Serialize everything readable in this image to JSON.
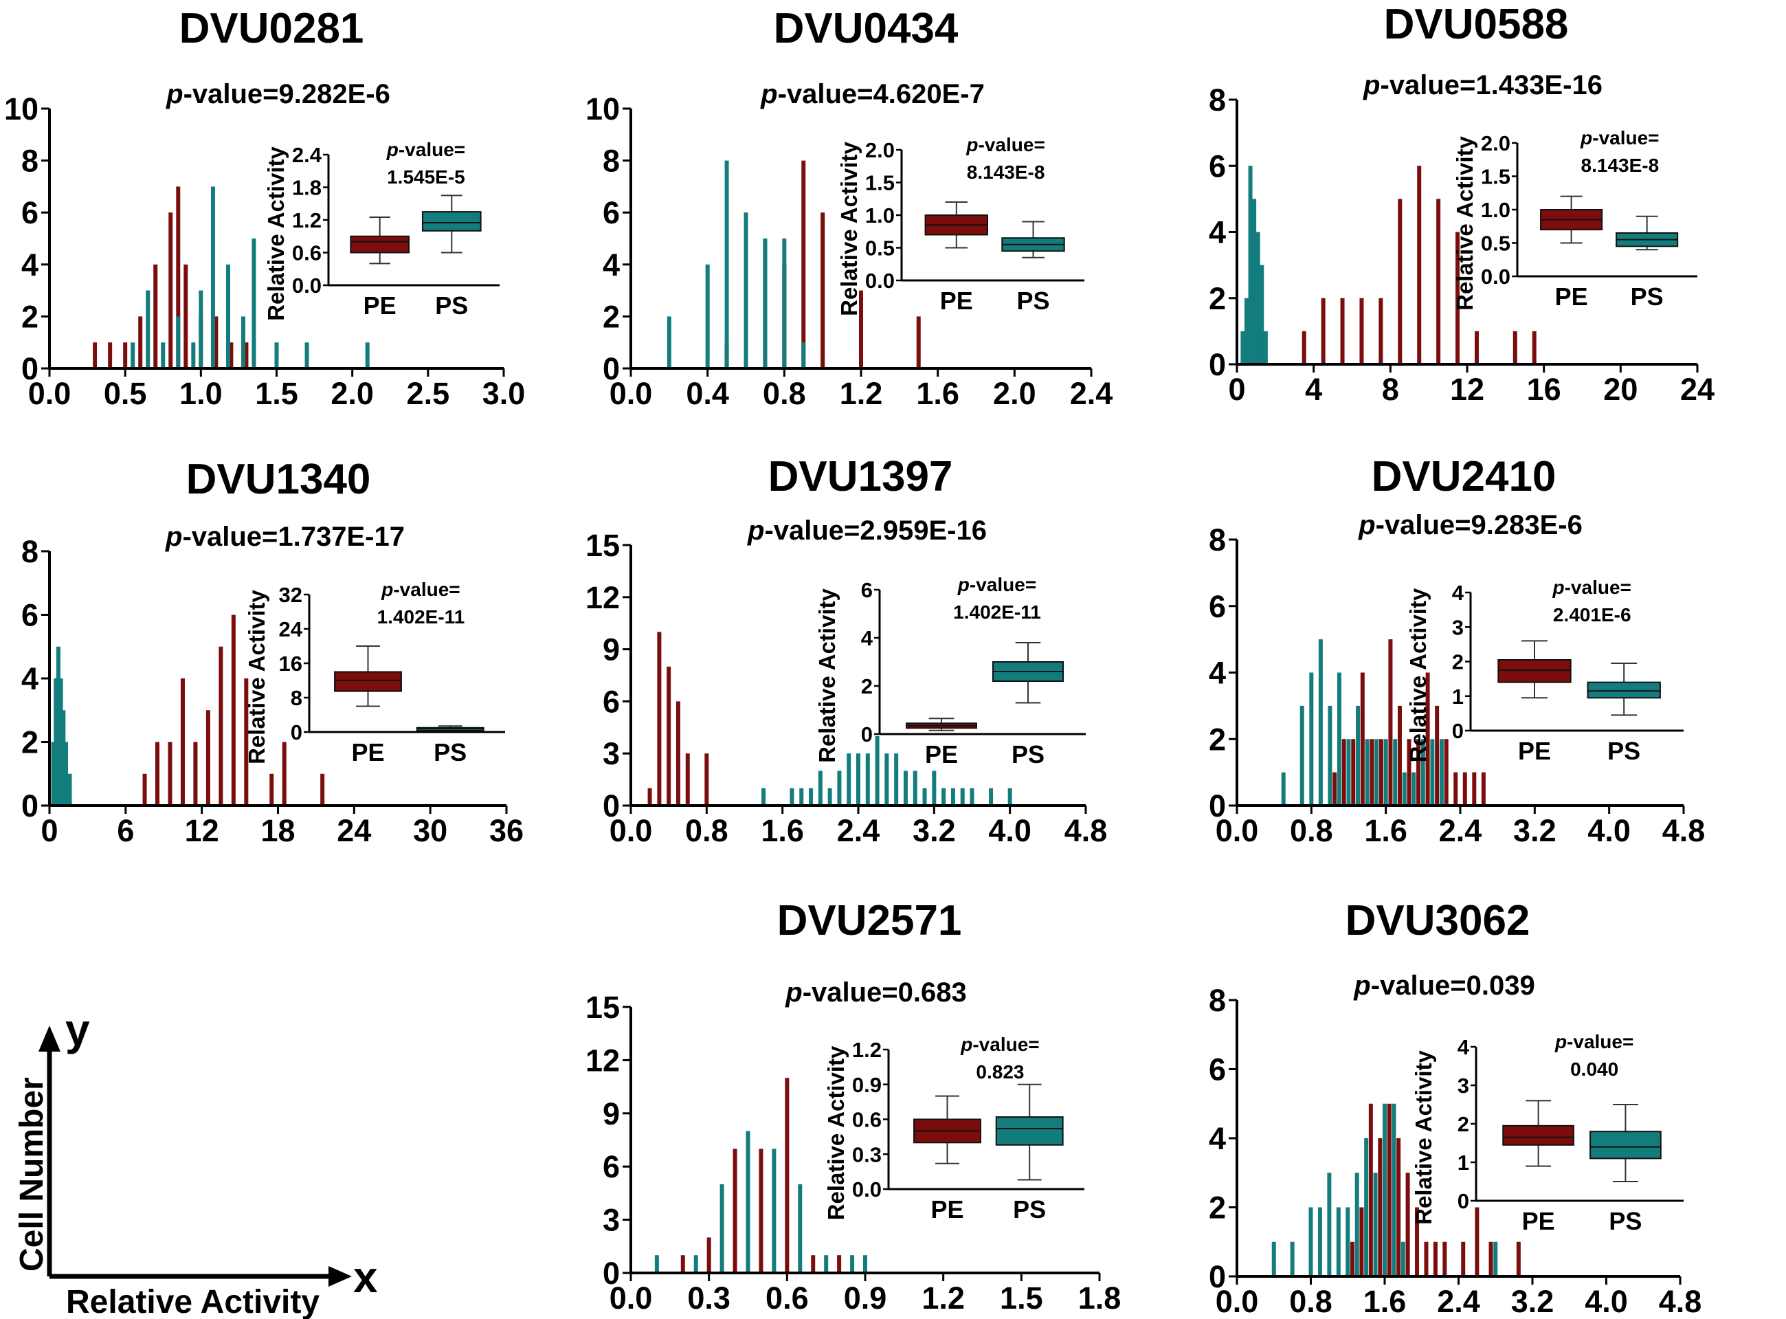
{
  "colors": {
    "PE": "#7b0d0d",
    "PS": "#137d7d",
    "axis": "#000000"
  },
  "legend": {
    "x_label": "Relative Activity",
    "y_label": "Cell Number",
    "x_arrow": "x",
    "y_arrow": "y"
  },
  "chart_data": [
    {
      "type": "bar",
      "title": "DVU0281",
      "p_prefix": "p",
      "p_value": "-value=9.282E-6",
      "xlim": [
        0,
        3.0
      ],
      "ylim": [
        0,
        10
      ],
      "xticks": [
        "0.0",
        "0.5",
        "1.0",
        "1.5",
        "2.0",
        "2.5",
        "3.0"
      ],
      "yticks": [
        "0",
        "2",
        "4",
        "6",
        "8",
        "10"
      ],
      "series": [
        {
          "name": "PE",
          "x": [
            0.3,
            0.4,
            0.5,
            0.6,
            0.7,
            0.8,
            0.85,
            0.9,
            1.0,
            1.1,
            1.2,
            1.3
          ],
          "values": [
            1,
            1,
            1,
            2,
            4,
            6,
            7,
            4,
            2,
            2,
            1,
            1
          ]
        },
        {
          "name": "PS",
          "x": [
            0.55,
            0.65,
            0.75,
            0.85,
            0.95,
            1.0,
            1.08,
            1.18,
            1.28,
            1.35,
            1.5,
            1.7,
            2.1
          ],
          "values": [
            1,
            3,
            1,
            2,
            1,
            3,
            7,
            4,
            2,
            5,
            1,
            1,
            1
          ]
        }
      ],
      "inset": {
        "ylabel": "Relative Activity",
        "ylim": [
          0,
          2.4
        ],
        "yticks": [
          "0.0",
          "0.6",
          "1.2",
          "1.8",
          "2.4"
        ],
        "categories": [
          "PE",
          "PS"
        ],
        "p_prefix": "p",
        "p_label": "-value=",
        "p_value": "1.545E-5",
        "boxes": [
          {
            "name": "PE",
            "min": 0.4,
            "q1": 0.6,
            "median": 0.8,
            "q3": 0.9,
            "max": 1.25
          },
          {
            "name": "PS",
            "min": 0.6,
            "q1": 1.0,
            "median": 1.15,
            "q3": 1.35,
            "max": 1.65
          }
        ]
      }
    },
    {
      "type": "bar",
      "title": "DVU0434",
      "p_prefix": "p",
      "p_value": "-value=4.620E-7",
      "xlim": [
        0,
        2.4
      ],
      "ylim": [
        0,
        10
      ],
      "xticks": [
        "0.0",
        "0.4",
        "0.8",
        "1.2",
        "1.6",
        "2.0",
        "2.4"
      ],
      "yticks": [
        "0",
        "2",
        "4",
        "6",
        "8",
        "10"
      ],
      "series": [
        {
          "name": "PE",
          "x": [
            0.5,
            0.6,
            0.7,
            0.8,
            0.9,
            1.0,
            1.2,
            1.5
          ],
          "values": [
            1,
            2,
            5,
            4,
            8,
            6,
            3,
            2
          ]
        },
        {
          "name": "PS",
          "x": [
            0.2,
            0.4,
            0.5,
            0.6,
            0.7,
            0.8,
            0.9
          ],
          "values": [
            2,
            4,
            8,
            6,
            5,
            5,
            1
          ]
        }
      ],
      "inset": {
        "ylabel": "Relative Activity",
        "ylim": [
          0,
          2.0
        ],
        "yticks": [
          "0.0",
          "0.5",
          "1.0",
          "1.5",
          "2.0"
        ],
        "categories": [
          "PE",
          "PS"
        ],
        "p_prefix": "p",
        "p_label": "-value=",
        "p_value": "8.143E-8",
        "boxes": [
          {
            "name": "PE",
            "min": 0.5,
            "q1": 0.7,
            "median": 0.85,
            "q3": 1.0,
            "max": 1.2
          },
          {
            "name": "PS",
            "min": 0.35,
            "q1": 0.45,
            "median": 0.55,
            "q3": 0.65,
            "max": 0.9
          }
        ]
      }
    },
    {
      "type": "bar",
      "title": "DVU0588",
      "p_prefix": "p",
      "p_value": "-value=1.433E-16",
      "xlim": [
        0,
        24
      ],
      "ylim": [
        0,
        8
      ],
      "xticks": [
        "0",
        "4",
        "8",
        "12",
        "16",
        "20",
        "24"
      ],
      "yticks": [
        "0",
        "2",
        "4",
        "6",
        "8"
      ],
      "series": [
        {
          "name": "PE",
          "x": [
            3.5,
            4.5,
            5.5,
            6.5,
            7.5,
            8.5,
            9.5,
            10.5,
            11.5,
            12.5,
            14.5,
            15.5
          ],
          "values": [
            1,
            2,
            2,
            2,
            2,
            5,
            6,
            5,
            4,
            1,
            1,
            1
          ]
        },
        {
          "name": "PS",
          "x": [
            0.3,
            0.5,
            0.7,
            0.9,
            1.1,
            1.3,
            1.5
          ],
          "values": [
            1,
            2,
            6,
            5,
            4,
            3,
            1
          ]
        }
      ],
      "inset": {
        "ylabel": "Relative Activity",
        "ylim": [
          0,
          2.0
        ],
        "yticks": [
          "0.0",
          "0.5",
          "1.0",
          "1.5",
          "2.0"
        ],
        "categories": [
          "PE",
          "PS"
        ],
        "p_prefix": "p",
        "p_label": "-value=",
        "p_value": "8.143E-8",
        "boxes": [
          {
            "name": "PE",
            "min": 0.5,
            "q1": 0.7,
            "median": 0.85,
            "q3": 1.0,
            "max": 1.2
          },
          {
            "name": "PS",
            "min": 0.4,
            "q1": 0.45,
            "median": 0.55,
            "q3": 0.65,
            "max": 0.9
          }
        ]
      }
    },
    {
      "type": "bar",
      "title": "DVU1340",
      "p_prefix": "p",
      "p_value": "-value=1.737E-17",
      "xlim": [
        0,
        36
      ],
      "ylim": [
        0,
        8
      ],
      "xticks": [
        "0",
        "6",
        "12",
        "18",
        "24",
        "30",
        "36"
      ],
      "yticks": [
        "0",
        "2",
        "4",
        "6",
        "8"
      ],
      "series": [
        {
          "name": "PE",
          "x": [
            7.5,
            8.5,
            9.5,
            10.5,
            11.5,
            12.5,
            13.5,
            14.5,
            15.5,
            17.5,
            18.5,
            21.5
          ],
          "values": [
            1,
            2,
            2,
            4,
            2,
            3,
            5,
            6,
            4,
            1,
            2,
            1
          ]
        },
        {
          "name": "PS",
          "x": [
            0.3,
            0.5,
            0.7,
            0.9,
            1.1,
            1.3,
            1.6
          ],
          "values": [
            2,
            4,
            5,
            4,
            3,
            2,
            1
          ]
        }
      ],
      "inset": {
        "ylabel": "Relative Activity",
        "ylim": [
          0,
          32
        ],
        "yticks": [
          "0",
          "8",
          "16",
          "24",
          "32"
        ],
        "categories": [
          "PE",
          "PS"
        ],
        "p_prefix": "p",
        "p_label": "-value=",
        "p_value": "1.402E-11",
        "boxes": [
          {
            "name": "PE",
            "min": 6,
            "q1": 9.5,
            "median": 12,
            "q3": 14,
            "max": 20
          },
          {
            "name": "PS",
            "min": 0.4,
            "q1": 0.6,
            "median": 0.8,
            "q3": 1.0,
            "max": 1.4
          }
        ]
      }
    },
    {
      "type": "bar",
      "title": "DVU1397",
      "p_prefix": "p",
      "p_value": "-value=2.959E-16",
      "xlim": [
        0,
        4.8
      ],
      "ylim": [
        0,
        15
      ],
      "xticks": [
        "0.0",
        "0.8",
        "1.6",
        "2.4",
        "3.2",
        "4.0",
        "4.8"
      ],
      "yticks": [
        "0",
        "3",
        "6",
        "9",
        "12",
        "15"
      ],
      "series": [
        {
          "name": "PE",
          "x": [
            0.2,
            0.3,
            0.4,
            0.5,
            0.6,
            0.8
          ],
          "values": [
            1,
            10,
            8,
            6,
            3,
            3
          ]
        },
        {
          "name": "PS",
          "x": [
            1.4,
            1.7,
            1.8,
            1.9,
            2.0,
            2.1,
            2.2,
            2.3,
            2.4,
            2.5,
            2.6,
            2.7,
            2.8,
            2.9,
            3.0,
            3.1,
            3.2,
            3.3,
            3.4,
            3.5,
            3.6,
            3.8,
            4.0
          ],
          "values": [
            1,
            1,
            1,
            1,
            2,
            1,
            2,
            3,
            3,
            3,
            4,
            3,
            3,
            2,
            2,
            1,
            2,
            1,
            1,
            1,
            1,
            1,
            1
          ]
        }
      ],
      "inset": {
        "ylabel": "Relative Activity",
        "ylim": [
          0,
          6
        ],
        "yticks": [
          "0",
          "2",
          "4",
          "6"
        ],
        "categories": [
          "PE",
          "PS"
        ],
        "p_prefix": "p",
        "p_label": "-value=",
        "p_value": "1.402E-11",
        "boxes": [
          {
            "name": "PE",
            "min": 0.15,
            "q1": 0.25,
            "median": 0.35,
            "q3": 0.45,
            "max": 0.65
          },
          {
            "name": "PS",
            "min": 1.3,
            "q1": 2.2,
            "median": 2.6,
            "q3": 3.0,
            "max": 3.8
          }
        ]
      }
    },
    {
      "type": "bar",
      "title": "DVU2410",
      "p_prefix": "p",
      "p_value": "-value=9.283E-6",
      "xlim": [
        0,
        4.8
      ],
      "ylim": [
        0,
        8
      ],
      "xticks": [
        "0.0",
        "0.8",
        "1.6",
        "2.4",
        "3.2",
        "4.0",
        "4.8"
      ],
      "yticks": [
        "0",
        "2",
        "4",
        "6",
        "8"
      ],
      "series": [
        {
          "name": "PE",
          "x": [
            1.05,
            1.15,
            1.25,
            1.35,
            1.45,
            1.55,
            1.65,
            1.75,
            1.85,
            1.95,
            2.05,
            2.15,
            2.25,
            2.35,
            2.45,
            2.55,
            2.65
          ],
          "values": [
            1,
            2,
            2,
            4,
            2,
            2,
            5,
            3,
            2,
            2,
            4,
            3,
            2,
            1,
            1,
            1,
            1
          ]
        },
        {
          "name": "PS",
          "x": [
            0.5,
            0.7,
            0.8,
            0.9,
            1.0,
            1.1,
            1.2,
            1.3,
            1.4,
            1.5,
            1.6,
            1.7,
            1.8,
            1.9,
            2.0,
            2.1,
            2.2
          ],
          "values": [
            1,
            3,
            4,
            5,
            3,
            4,
            2,
            3,
            2,
            2,
            2,
            2,
            1,
            1,
            2,
            2,
            2
          ]
        }
      ],
      "inset": {
        "ylabel": "Relative Activity",
        "ylim": [
          0,
          4
        ],
        "yticks": [
          "0",
          "1",
          "2",
          "3",
          "4"
        ],
        "categories": [
          "PE",
          "PS"
        ],
        "p_prefix": "p",
        "p_label": "-value=",
        "p_value": "2.401E-6",
        "boxes": [
          {
            "name": "PE",
            "min": 0.95,
            "q1": 1.4,
            "median": 1.75,
            "q3": 2.05,
            "max": 2.6
          },
          {
            "name": "PS",
            "min": 0.45,
            "q1": 0.95,
            "median": 1.15,
            "q3": 1.4,
            "max": 1.95
          }
        ]
      }
    },
    {
      "type": "bar",
      "title": "DVU2571",
      "p_prefix": "p",
      "p_value": "-value=0.683",
      "xlim": [
        0,
        1.8
      ],
      "ylim": [
        0,
        15
      ],
      "xticks": [
        "0.0",
        "0.3",
        "0.6",
        "0.9",
        "1.2",
        "1.5",
        "1.8"
      ],
      "yticks": [
        "0",
        "3",
        "6",
        "9",
        "12",
        "15"
      ],
      "series": [
        {
          "name": "PE",
          "x": [
            0.2,
            0.3,
            0.4,
            0.5,
            0.6,
            0.7,
            0.8
          ],
          "values": [
            1,
            2,
            7,
            7,
            11,
            1,
            1
          ]
        },
        {
          "name": "PS",
          "x": [
            0.1,
            0.25,
            0.35,
            0.45,
            0.55,
            0.65,
            0.75,
            0.85,
            0.9
          ],
          "values": [
            1,
            1,
            5,
            8,
            7,
            5,
            1,
            1,
            1
          ]
        }
      ],
      "inset": {
        "ylabel": "Relative Activity",
        "ylim": [
          0,
          1.2
        ],
        "yticks": [
          "0.0",
          "0.3",
          "0.6",
          "0.9",
          "1.2"
        ],
        "categories": [
          "PE",
          "PS"
        ],
        "p_prefix": "p",
        "p_label": "-value=",
        "p_value": "0.823",
        "boxes": [
          {
            "name": "PE",
            "min": 0.22,
            "q1": 0.4,
            "median": 0.5,
            "q3": 0.6,
            "max": 0.8
          },
          {
            "name": "PS",
            "min": 0.08,
            "q1": 0.38,
            "median": 0.52,
            "q3": 0.62,
            "max": 0.9
          }
        ]
      }
    },
    {
      "type": "bar",
      "title": "DVU3062",
      "p_prefix": "p",
      "p_value": "-value=0.039",
      "xlim": [
        0,
        4.8
      ],
      "ylim": [
        0,
        8
      ],
      "xticks": [
        "0.0",
        "0.8",
        "1.6",
        "2.4",
        "3.2",
        "4.0",
        "4.8"
      ],
      "yticks": [
        "0",
        "2",
        "4",
        "6",
        "8"
      ],
      "series": [
        {
          "name": "PE",
          "x": [
            1.25,
            1.35,
            1.45,
            1.55,
            1.65,
            1.75,
            1.85,
            1.95,
            2.05,
            2.15,
            2.25,
            2.45,
            2.6,
            2.75,
            3.05
          ],
          "values": [
            1,
            2,
            5,
            4,
            5,
            4,
            3,
            2,
            1,
            1,
            1,
            1,
            2,
            1,
            1
          ]
        },
        {
          "name": "PS",
          "x": [
            0.4,
            0.6,
            0.8,
            0.9,
            1.0,
            1.1,
            1.2,
            1.3,
            1.4,
            1.5,
            1.6,
            1.7,
            1.8,
            2.8
          ],
          "values": [
            1,
            1,
            2,
            2,
            3,
            2,
            2,
            3,
            4,
            3,
            5,
            5,
            1,
            1
          ]
        }
      ],
      "inset": {
        "ylabel": "Relative Activity",
        "ylim": [
          0,
          4
        ],
        "yticks": [
          "0",
          "1",
          "2",
          "3",
          "4"
        ],
        "categories": [
          "PE",
          "PS"
        ],
        "p_prefix": "p",
        "p_label": "-value=",
        "p_value": "0.040",
        "boxes": [
          {
            "name": "PE",
            "min": 0.9,
            "q1": 1.45,
            "median": 1.65,
            "q3": 1.95,
            "max": 2.6
          },
          {
            "name": "PS",
            "min": 0.5,
            "q1": 1.1,
            "median": 1.4,
            "q3": 1.8,
            "max": 2.5
          }
        ]
      }
    }
  ]
}
